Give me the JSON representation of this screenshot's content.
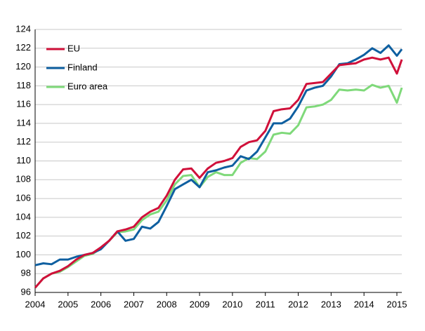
{
  "chart_data": {
    "type": "line",
    "x": [
      2004,
      2004.25,
      2004.5,
      2004.75,
      2005,
      2005.25,
      2005.5,
      2005.75,
      2006,
      2006.25,
      2006.5,
      2006.75,
      2007,
      2007.25,
      2007.5,
      2007.75,
      2008,
      2008.25,
      2008.5,
      2008.75,
      2009,
      2009.25,
      2009.5,
      2009.75,
      2010,
      2010.25,
      2010.5,
      2010.75,
      2011,
      2011.25,
      2011.5,
      2011.75,
      2012,
      2012.25,
      2012.5,
      2012.75,
      2013,
      2013.25,
      2013.5,
      2013.75,
      2014,
      2014.25,
      2014.5,
      2014.75,
      2015,
      2015.15
    ],
    "series": [
      {
        "name": "EU",
        "color": "#d0103a",
        "values": [
          96.5,
          97.5,
          98.0,
          98.3,
          98.8,
          99.5,
          100.0,
          100.2,
          100.8,
          101.5,
          102.5,
          102.7,
          103.0,
          104.0,
          104.6,
          105.0,
          106.3,
          108.0,
          109.1,
          109.2,
          108.2,
          109.2,
          109.8,
          110.0,
          110.3,
          111.5,
          112.0,
          112.2,
          113.2,
          115.3,
          115.5,
          115.6,
          116.5,
          118.2,
          118.3,
          118.4,
          119.3,
          120.2,
          120.3,
          120.4,
          120.8,
          121.0,
          120.8,
          121.0,
          119.3,
          120.8
        ]
      },
      {
        "name": "Finland",
        "color": "#0e5fa0",
        "values": [
          98.9,
          99.1,
          99.0,
          99.5,
          99.5,
          99.8,
          100.0,
          100.2,
          100.6,
          101.5,
          102.5,
          101.5,
          101.7,
          103.0,
          102.8,
          103.5,
          105.2,
          107.0,
          107.5,
          108.0,
          107.2,
          108.8,
          109.0,
          109.3,
          109.5,
          110.5,
          110.2,
          111.0,
          112.5,
          114.0,
          114.0,
          114.5,
          115.8,
          117.5,
          117.8,
          118.0,
          119.0,
          120.3,
          120.4,
          120.8,
          121.3,
          122.0,
          121.5,
          122.3,
          121.2,
          121.9
        ]
      },
      {
        "name": "Euro area",
        "color": "#7fd97a",
        "values": [
          96.5,
          97.5,
          98.0,
          98.2,
          98.7,
          99.3,
          99.9,
          100.1,
          100.7,
          101.5,
          102.4,
          102.5,
          102.7,
          103.7,
          104.3,
          104.6,
          105.8,
          107.5,
          108.4,
          108.5,
          107.2,
          108.3,
          108.8,
          108.5,
          108.5,
          109.8,
          110.3,
          110.2,
          111.0,
          112.8,
          113.0,
          112.9,
          113.8,
          115.7,
          115.8,
          116.0,
          116.5,
          117.6,
          117.5,
          117.6,
          117.5,
          118.1,
          117.8,
          118.0,
          116.2,
          117.8
        ]
      }
    ],
    "xlim": [
      2004,
      2015.15
    ],
    "xticks": [
      2004,
      2005,
      2006,
      2007,
      2008,
      2009,
      2010,
      2011,
      2012,
      2013,
      2014,
      2015
    ],
    "ylim": [
      96,
      124
    ],
    "yticks": [
      96,
      98,
      100,
      102,
      104,
      106,
      108,
      110,
      112,
      114,
      116,
      118,
      120,
      122,
      124
    ],
    "grid": true,
    "legend": "upper-left"
  }
}
